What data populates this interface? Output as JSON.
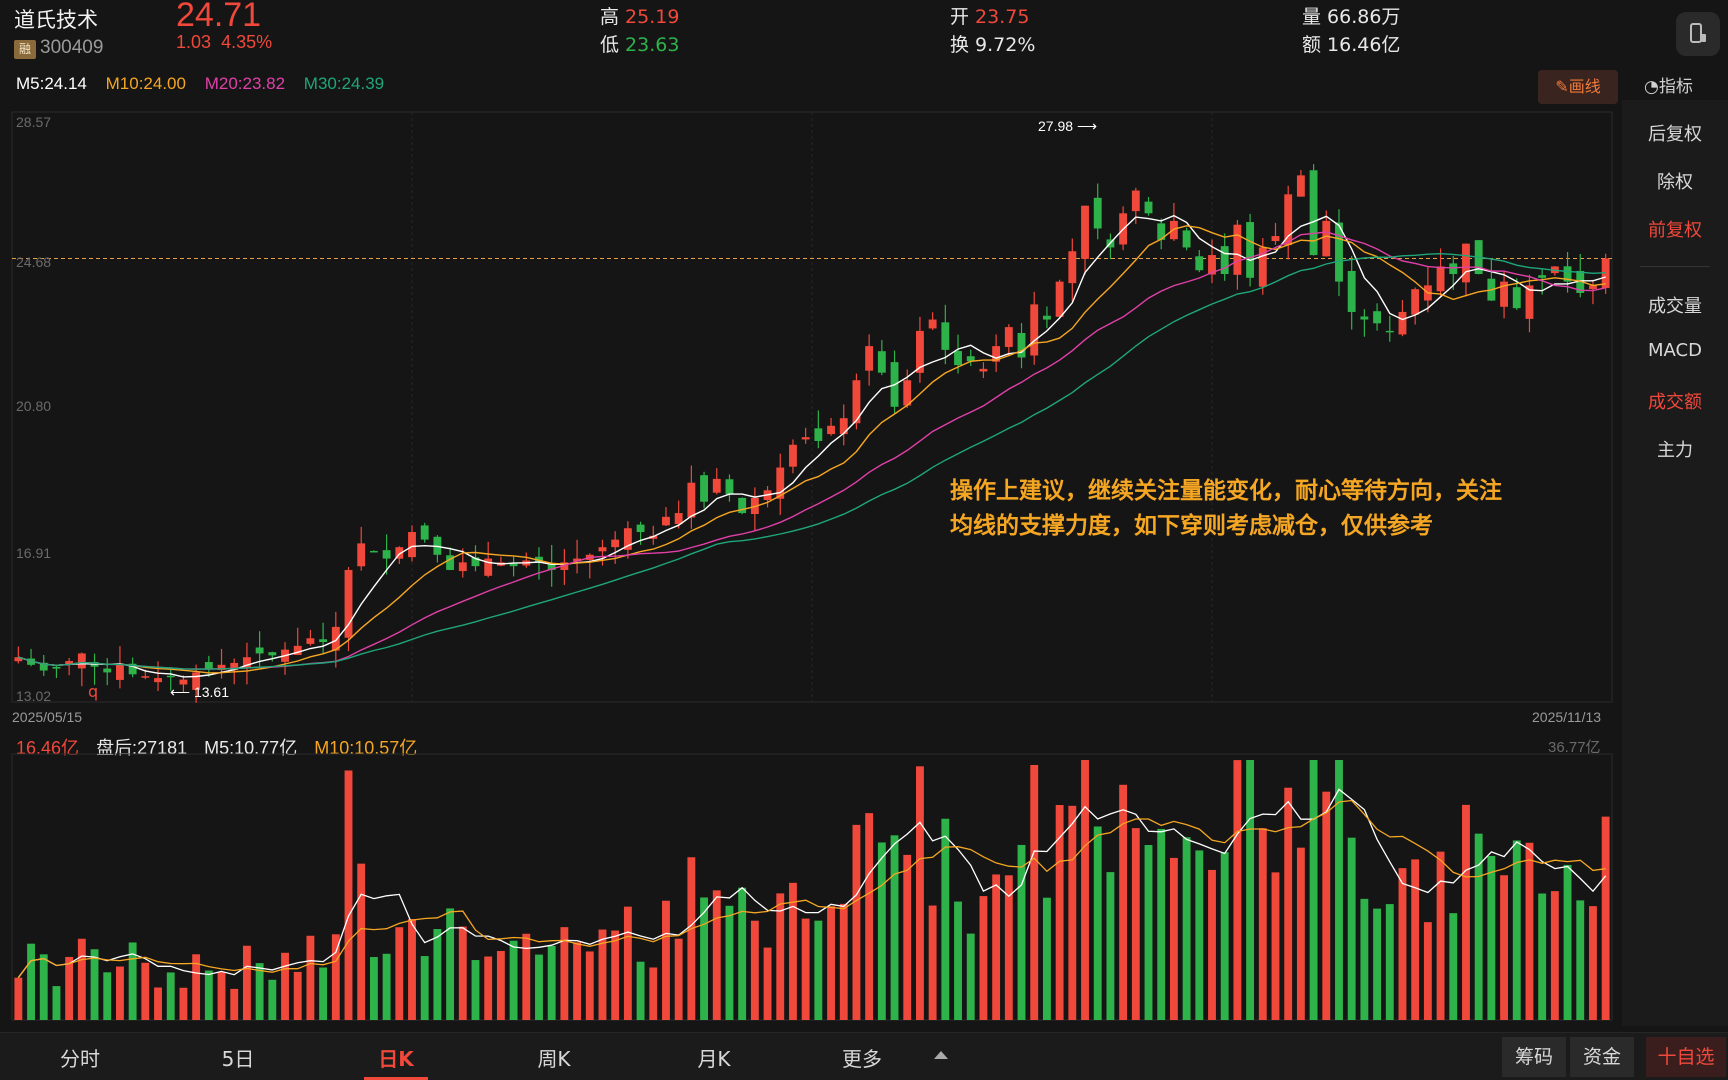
{
  "header": {
    "stock_name": "道氏技术",
    "rong_badge": "融",
    "stock_code": "300409",
    "last_price": "24.71",
    "change": "1.03",
    "change_pct": "4.35%",
    "high_label": "高",
    "high_value": "25.19",
    "low_label": "低",
    "low_value": "23.63",
    "open_label": "开",
    "open_value": "23.75",
    "turnover_label": "换",
    "turnover_value": "9.72%",
    "volume_label": "量",
    "volume_value": "66.86万",
    "amount_label": "额",
    "amount_value": "16.46亿"
  },
  "ma_legend": {
    "m5": "M5:24.14",
    "m10": "M10:24.00",
    "m20": "M20:23.82",
    "m30": "M30:24.39"
  },
  "toolbar": {
    "draw_label": "画线",
    "indicator_label": "指标"
  },
  "side_panel": {
    "items": [
      {
        "label": "后复权",
        "active": false
      },
      {
        "label": "除权",
        "active": false
      },
      {
        "label": "前复权",
        "active": true
      },
      {
        "label": "成交量",
        "active": false
      },
      {
        "label": "MACD",
        "active": false
      },
      {
        "label": "成交额",
        "active": true
      },
      {
        "label": "主力",
        "active": false
      }
    ]
  },
  "kline": {
    "y_ticks": [
      "28.57",
      "24.68",
      "20.80",
      "16.91",
      "13.02"
    ],
    "date_start": "2025/05/15",
    "date_end": "2025/11/13",
    "max_marker": "27.98",
    "min_marker": "13.61",
    "q_marker": "q",
    "annotation_line1": "操作上建议，继续关注量能变化，耐心等待方向，关注",
    "annotation_line2": "均线的支撑力度，如下穿则考虑减仓，仅供参考"
  },
  "volume_panel": {
    "amount": "16.46亿",
    "after_hours": "盘后:27181",
    "m5": "M5:10.77亿",
    "m10": "M10:10.57亿",
    "max_label": "36.77亿"
  },
  "bottom_tabs": {
    "tabs": [
      "分时",
      "5日",
      "日K",
      "周K",
      "月K",
      "更多"
    ],
    "active": "日K",
    "chips": "筹码",
    "funds": "资金",
    "add_fav": "十自选"
  },
  "colors": {
    "up": "#f0483a",
    "down": "#2eb34a",
    "ma5": "#ffffff",
    "ma10": "#f5a623",
    "ma20": "#e040a8",
    "ma30": "#1fa67a",
    "bg": "#151515"
  },
  "chart_data": {
    "type": "candlestick",
    "ylim": [
      13.02,
      28.57
    ],
    "closes": [
      14.2,
      14.0,
      13.85,
      13.9,
      14.1,
      14.3,
      13.95,
      13.8,
      14.0,
      13.75,
      13.7,
      13.65,
      13.7,
      13.61,
      13.8,
      13.9,
      14.0,
      14.05,
      14.2,
      14.3,
      14.25,
      14.4,
      14.5,
      14.7,
      14.6,
      15.0,
      16.5,
      17.2,
      17.0,
      16.8,
      17.1,
      17.5,
      17.3,
      16.9,
      16.5,
      16.7,
      16.6,
      16.8,
      16.7,
      16.6,
      16.75,
      16.7,
      16.5,
      16.7,
      16.8,
      16.9,
      17.1,
      17.3,
      17.6,
      17.5,
      17.4,
      17.9,
      18.0,
      18.8,
      18.3,
      18.9,
      18.5,
      18.0,
      18.4,
      18.6,
      19.2,
      19.8,
      20.0,
      19.9,
      20.3,
      20.5,
      21.5,
      22.4,
      21.7,
      20.8,
      21.5,
      22.8,
      23.1,
      22.3,
      21.9,
      22.0,
      21.8,
      22.4,
      22.9,
      22.1,
      23.5,
      23.1,
      24.1,
      24.9,
      26.1,
      25.5,
      25.0,
      25.9,
      26.5,
      25.9,
      25.2,
      25.7,
      25.0,
      24.4,
      24.8,
      24.3,
      25.6,
      24.2,
      25.0,
      25.3,
      26.4,
      26.9,
      24.8,
      25.7,
      24.1,
      23.3,
      23.1,
      23.0,
      22.8,
      23.3,
      23.9,
      24.0,
      24.5,
      24.3,
      25.1,
      24.3,
      23.6,
      24.1,
      23.4,
      24.0,
      24.2,
      24.5,
      24.1,
      23.8,
      24.0,
      24.71
    ],
    "volume_max": 36.77,
    "volume_unit": "亿"
  }
}
